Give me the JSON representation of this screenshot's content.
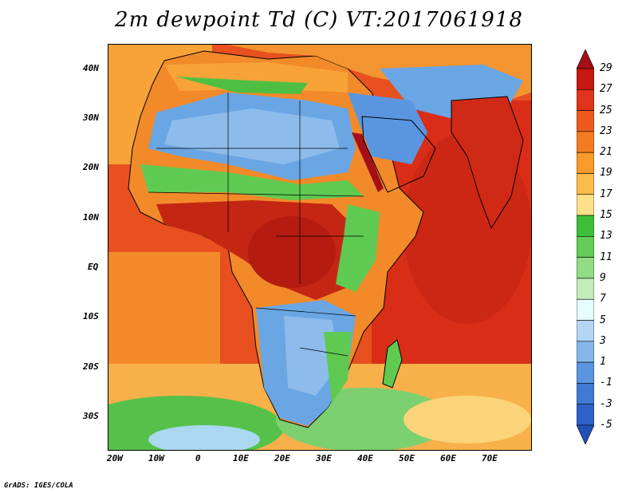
{
  "title": "2m dewpoint Td (C) VT:2017061918",
  "credit": "GrADS: IGES/COLA",
  "map": {
    "lat_labels": [
      "40N",
      "30N",
      "20N",
      "10N",
      "EQ",
      "10S",
      "20S",
      "30S"
    ],
    "lon_labels": [
      "20W",
      "10W",
      "0",
      "10E",
      "20E",
      "30E",
      "40E",
      "50E",
      "60E",
      "70E"
    ]
  },
  "colorbar": {
    "labels": [
      "29",
      "27",
      "25",
      "23",
      "21",
      "19",
      "17",
      "15",
      "13",
      "11",
      "9",
      "7",
      "5",
      "3",
      "1",
      "-1",
      "-3",
      "-5"
    ],
    "colors": [
      "#a50f15",
      "#c8170f",
      "#e0341a",
      "#ee5a1e",
      "#f57b20",
      "#fa9a28",
      "#fbbc4a",
      "#fde08a",
      "#3dbf3a",
      "#62cc55",
      "#92dc86",
      "#c2ecb8",
      "#e6fbfb",
      "#b4d6f4",
      "#84b6ec",
      "#5a96e0",
      "#3f7ad4",
      "#2f62c8",
      "#2050b8"
    ]
  }
}
